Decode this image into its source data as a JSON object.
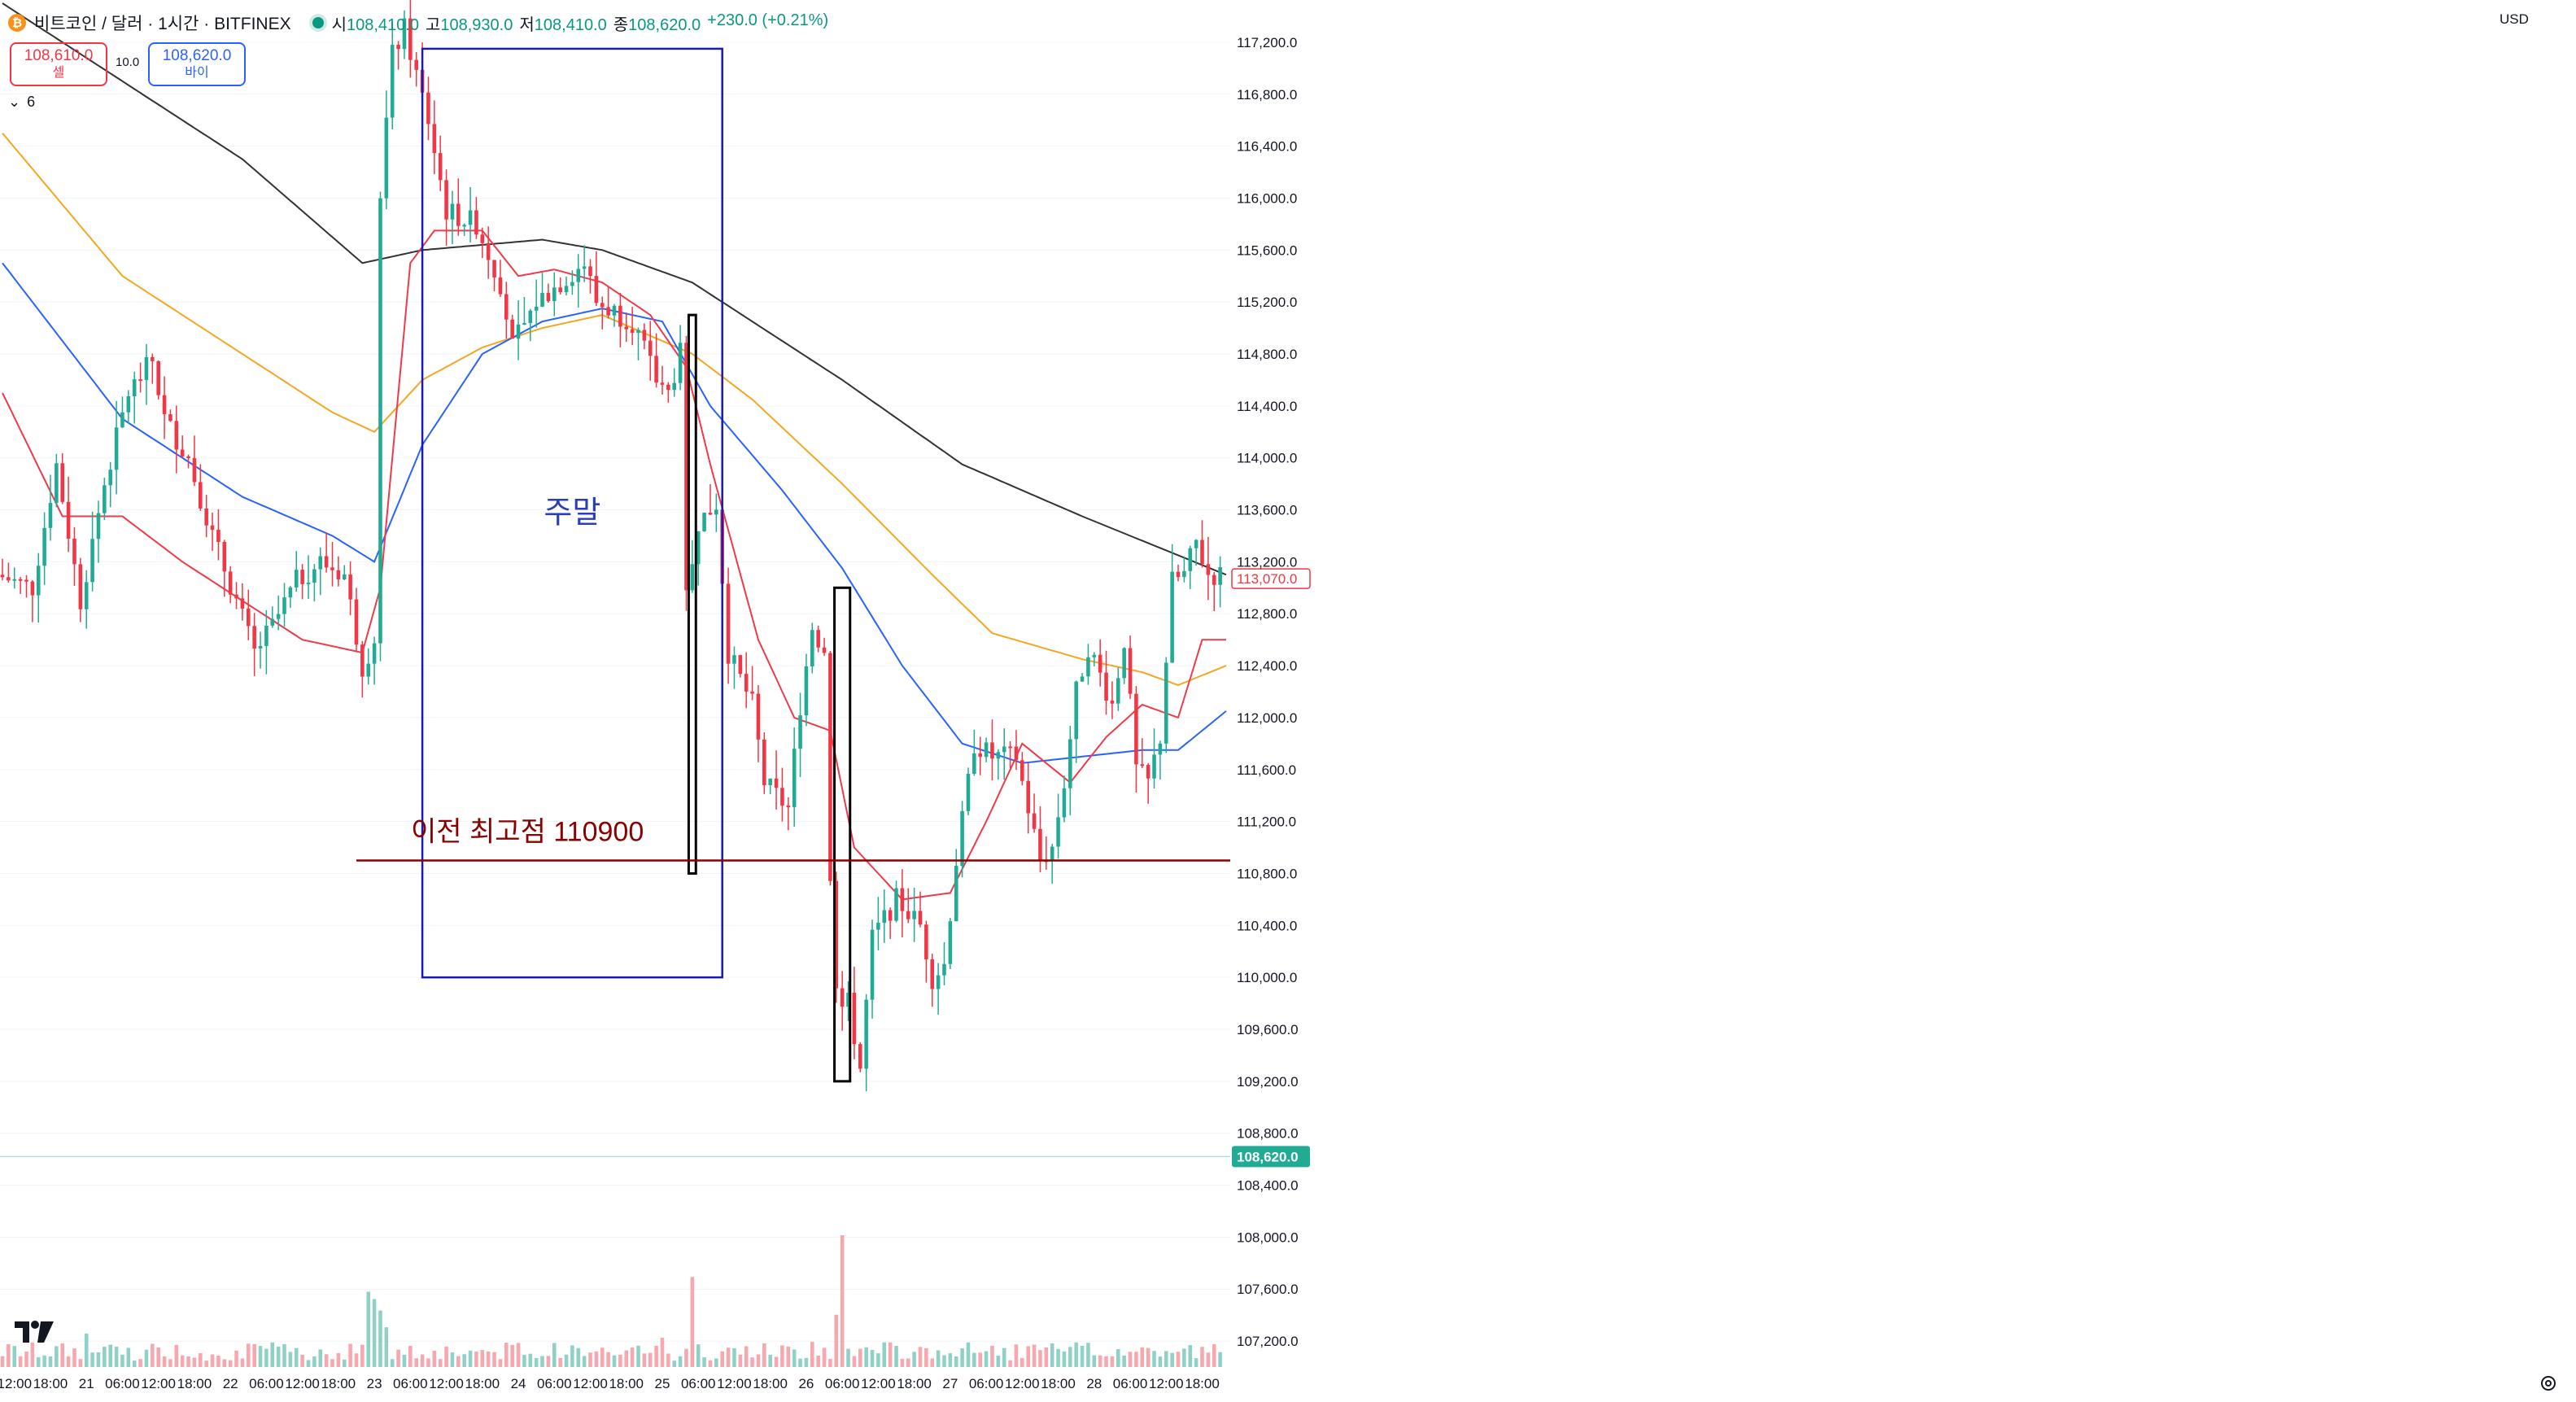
{
  "header": {
    "coin_glyph": "₿",
    "symbol": "비트코인 / 달러 · 1시간 · BITFINEX",
    "open_label": "시",
    "open": "108,410.0",
    "high_label": "고",
    "high": "108,930.0",
    "low_label": "저",
    "low": "108,410.0",
    "close_label": "종",
    "close": "108,620.0",
    "change": "+230.0 (+0.21%)"
  },
  "trade": {
    "sell_price": "108,610.0",
    "sell_label": "셀",
    "spread": "10.0",
    "buy_price": "108,620.0",
    "buy_label": "바이"
  },
  "indicator_toggle": {
    "chevron": "⌄",
    "count": "6"
  },
  "currency": "USD",
  "annotations": {
    "weekend_label": "주말",
    "prev_high_label": "이전 최고점 110900"
  },
  "colors": {
    "up": "#22ab94",
    "down": "#f23645",
    "vol_up": "#8fd1c6",
    "vol_down": "#f7a7ad",
    "ma_black": "#333333",
    "ma_orange": "#f5a623",
    "ma_blue": "#2962ff",
    "ma_red": "#ee3b4a",
    "box_blue": "#1a1ab0",
    "prev_high_line": "#8b0000",
    "prev_high_text": "#8b0000",
    "last_price_tag": "#22ab94",
    "ma_price_tag": "#f23645"
  },
  "chart_data": {
    "type": "candlestick",
    "timeframe": "1h",
    "ylim": [
      107000,
      117400
    ],
    "y_ticks": [
      107200,
      107600,
      108000,
      108400,
      108800,
      109200,
      109600,
      110000,
      110400,
      110800,
      111200,
      111600,
      112000,
      112400,
      112800,
      113200,
      113600,
      114000,
      114400,
      114800,
      115200,
      115600,
      116000,
      116400,
      116800,
      117200
    ],
    "y_tick_labels": [
      "107,200.0",
      "107,600.0",
      "108,000.0",
      "108,400.0",
      "108,800.0",
      "109,200.0",
      "109,600.0",
      "110,000.0",
      "110,400.0",
      "110,800.0",
      "111,200.0",
      "111,600.0",
      "112,000.0",
      "112,400.0",
      "112,800.0",
      "113,200.0",
      "113,600.0",
      "114,000.0",
      "114,400.0",
      "114,800.0",
      "115,200.0",
      "115,600.0",
      "116,000.0",
      "116,400.0",
      "116,800.0",
      "117,200.0"
    ],
    "x_ticks": [
      {
        "label": "12:00",
        "bar": 2
      },
      {
        "label": "18:00",
        "bar": 8
      },
      {
        "label": "21",
        "bar": 14
      },
      {
        "label": "06:00",
        "bar": 20
      },
      {
        "label": "12:00",
        "bar": 26
      },
      {
        "label": "18:00",
        "bar": 32
      },
      {
        "label": "22",
        "bar": 38
      },
      {
        "label": "06:00",
        "bar": 44
      },
      {
        "label": "12:00",
        "bar": 50
      },
      {
        "label": "18:00",
        "bar": 56
      },
      {
        "label": "23",
        "bar": 62
      },
      {
        "label": "06:00",
        "bar": 68
      },
      {
        "label": "12:00",
        "bar": 74
      },
      {
        "label": "18:00",
        "bar": 80
      },
      {
        "label": "24",
        "bar": 86
      },
      {
        "label": "06:00",
        "bar": 92
      },
      {
        "label": "12:00",
        "bar": 98
      },
      {
        "label": "18:00",
        "bar": 104
      },
      {
        "label": "25",
        "bar": 110
      },
      {
        "label": "06:00",
        "bar": 116
      },
      {
        "label": "12:00",
        "bar": 122
      },
      {
        "label": "18:00",
        "bar": 128
      },
      {
        "label": "26",
        "bar": 134
      },
      {
        "label": "06:00",
        "bar": 140
      },
      {
        "label": "12:00",
        "bar": 146
      },
      {
        "label": "18:00",
        "bar": 152
      },
      {
        "label": "27",
        "bar": 158
      },
      {
        "label": "06:00",
        "bar": 164
      },
      {
        "label": "12:00",
        "bar": 170
      },
      {
        "label": "18:00",
        "bar": 176
      },
      {
        "label": "28",
        "bar": 182
      },
      {
        "label": "06:00",
        "bar": 188
      },
      {
        "label": "12:00",
        "bar": 194
      },
      {
        "label": "18:00",
        "bar": 200
      }
    ],
    "bar_count": 204,
    "key_points": [
      [
        0,
        113100
      ],
      [
        6,
        113000
      ],
      [
        10,
        113950
      ],
      [
        14,
        112900
      ],
      [
        18,
        113800
      ],
      [
        22,
        114500
      ],
      [
        26,
        114750
      ],
      [
        28,
        114300
      ],
      [
        32,
        114000
      ],
      [
        36,
        113400
      ],
      [
        40,
        112900
      ],
      [
        43,
        112500
      ],
      [
        46,
        112700
      ],
      [
        50,
        113050
      ],
      [
        54,
        113200
      ],
      [
        58,
        113100
      ],
      [
        61,
        112400
      ],
      [
        63,
        112600
      ],
      [
        64,
        116000
      ],
      [
        66,
        117100
      ],
      [
        68,
        117300
      ],
      [
        72,
        116600
      ],
      [
        75,
        115900
      ],
      [
        80,
        115800
      ],
      [
        84,
        115350
      ],
      [
        86,
        114850
      ],
      [
        90,
        115200
      ],
      [
        98,
        115500
      ],
      [
        100,
        115200
      ],
      [
        106,
        115050
      ],
      [
        110,
        114600
      ],
      [
        112,
        114500
      ],
      [
        114,
        114800
      ],
      [
        115,
        112900
      ],
      [
        117,
        113500
      ],
      [
        120,
        113650
      ],
      [
        122,
        112500
      ],
      [
        126,
        112100
      ],
      [
        128,
        111500
      ],
      [
        132,
        111300
      ],
      [
        134,
        112100
      ],
      [
        136,
        112700
      ],
      [
        138,
        112500
      ],
      [
        139,
        110800
      ],
      [
        140,
        109900
      ],
      [
        142,
        109800
      ],
      [
        144,
        109300
      ],
      [
        146,
        110300
      ],
      [
        150,
        110600
      ],
      [
        154,
        110400
      ],
      [
        156,
        110000
      ],
      [
        158,
        110100
      ],
      [
        160,
        110900
      ],
      [
        163,
        111800
      ],
      [
        166,
        111700
      ],
      [
        170,
        111700
      ],
      [
        174,
        110900
      ],
      [
        176,
        111000
      ],
      [
        178,
        111500
      ],
      [
        180,
        112200
      ],
      [
        182,
        112550
      ],
      [
        186,
        112100
      ],
      [
        188,
        112600
      ],
      [
        190,
        111600
      ],
      [
        192,
        111500
      ],
      [
        194,
        111850
      ],
      [
        196,
        113050
      ],
      [
        198,
        113100
      ],
      [
        200,
        113350
      ],
      [
        202,
        113100
      ]
    ],
    "volume_spikes": [
      {
        "bar": 61,
        "v": 7.2,
        "dir": "up"
      },
      {
        "bar": 62,
        "v": 6.5,
        "dir": "up"
      },
      {
        "bar": 63,
        "v": 5.4,
        "dir": "up"
      },
      {
        "bar": 64,
        "v": 3.8,
        "dir": "up"
      },
      {
        "bar": 115,
        "v": 8.6,
        "dir": "down"
      },
      {
        "bar": 139,
        "v": 5.0,
        "dir": "down"
      },
      {
        "bar": 140,
        "v": 12.6,
        "dir": "down"
      },
      {
        "bar": 14,
        "v": 3.2,
        "dir": "up"
      },
      {
        "bar": 110,
        "v": 2.8,
        "dir": "down"
      },
      {
        "bar": 135,
        "v": 2.4,
        "dir": "down"
      },
      {
        "bar": 86,
        "v": 2.3,
        "dir": "down"
      }
    ],
    "vol_max": 14,
    "ma_lines": [
      {
        "name": "ma_black",
        "points": [
          [
            0,
            117500
          ],
          [
            20,
            116900
          ],
          [
            40,
            116300
          ],
          [
            60,
            115500
          ],
          [
            70,
            115600
          ],
          [
            90,
            115680
          ],
          [
            100,
            115600
          ],
          [
            115,
            115350
          ],
          [
            130,
            114900
          ],
          [
            140,
            114600
          ],
          [
            160,
            113950
          ],
          [
            180,
            113550
          ],
          [
            196,
            113250
          ],
          [
            204,
            113100
          ]
        ]
      },
      {
        "name": "ma_orange",
        "points": [
          [
            0,
            116500
          ],
          [
            20,
            115400
          ],
          [
            40,
            114800
          ],
          [
            55,
            114350
          ],
          [
            62,
            114200
          ],
          [
            70,
            114600
          ],
          [
            80,
            114850
          ],
          [
            90,
            115000
          ],
          [
            100,
            115100
          ],
          [
            115,
            114800
          ],
          [
            125,
            114450
          ],
          [
            140,
            113800
          ],
          [
            155,
            113100
          ],
          [
            165,
            112650
          ],
          [
            180,
            112450
          ],
          [
            190,
            112350
          ],
          [
            196,
            112250
          ],
          [
            204,
            112400
          ]
        ]
      },
      {
        "name": "ma_blue",
        "points": [
          [
            0,
            115500
          ],
          [
            20,
            114300
          ],
          [
            40,
            113700
          ],
          [
            55,
            113400
          ],
          [
            62,
            113200
          ],
          [
            70,
            114100
          ],
          [
            80,
            114800
          ],
          [
            90,
            115050
          ],
          [
            100,
            115150
          ],
          [
            110,
            115050
          ],
          [
            118,
            114400
          ],
          [
            130,
            113750
          ],
          [
            140,
            113150
          ],
          [
            150,
            112400
          ],
          [
            160,
            111800
          ],
          [
            170,
            111650
          ],
          [
            180,
            111700
          ],
          [
            190,
            111750
          ],
          [
            196,
            111750
          ],
          [
            204,
            112050
          ]
        ]
      },
      {
        "name": "ma_red",
        "points": [
          [
            0,
            114500
          ],
          [
            10,
            113550
          ],
          [
            20,
            113550
          ],
          [
            30,
            113200
          ],
          [
            40,
            112900
          ],
          [
            50,
            112600
          ],
          [
            60,
            112500
          ],
          [
            63,
            113000
          ],
          [
            68,
            115500
          ],
          [
            72,
            115750
          ],
          [
            80,
            115750
          ],
          [
            86,
            115400
          ],
          [
            92,
            115450
          ],
          [
            100,
            115350
          ],
          [
            108,
            115100
          ],
          [
            114,
            114700
          ],
          [
            118,
            113950
          ],
          [
            126,
            112600
          ],
          [
            132,
            112000
          ],
          [
            138,
            111900
          ],
          [
            142,
            111000
          ],
          [
            150,
            110600
          ],
          [
            158,
            110650
          ],
          [
            164,
            111200
          ],
          [
            170,
            111800
          ],
          [
            178,
            111500
          ],
          [
            184,
            111850
          ],
          [
            190,
            112100
          ],
          [
            196,
            112000
          ],
          [
            200,
            112600
          ],
          [
            204,
            112600
          ]
        ]
      }
    ],
    "prev_high": 110900,
    "weekend_box": {
      "bar_from": 70,
      "bar_to": 120,
      "price_from": 110000,
      "price_to": 117150
    },
    "highlight_boxes": [
      {
        "bar_from": 114.4,
        "bar_to": 115.6,
        "price_from": 110800,
        "price_to": 115100
      },
      {
        "bar_from": 138.7,
        "bar_to": 141.3,
        "price_from": 109200,
        "price_to": 113000
      }
    ],
    "last_price": 108620,
    "last_price_label": "108,620.0",
    "ma_price": 113070,
    "ma_price_label": "113,070.0"
  }
}
